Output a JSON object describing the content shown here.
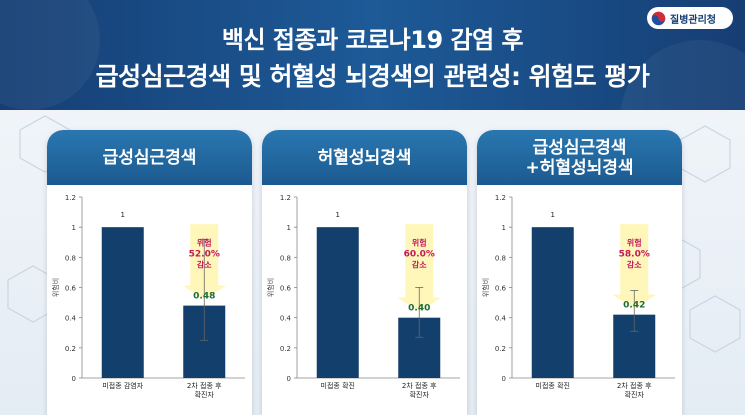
{
  "header": {
    "title_line1": "백신 접종과 코로나19 감염 후",
    "title_line2": "급성심근경색 및 허혈성 뇌경색의 관련성: 위험도 평가",
    "logo_text": "질병관리청"
  },
  "colors": {
    "header_bg": "#1b4f88",
    "card_head": "#1f65a0",
    "bar": "#123f6b",
    "risk_text": "#c2185b",
    "value_text": "#1f6b3a",
    "arrow_fill": "#fff6b3"
  },
  "chart_data": [
    {
      "type": "bar",
      "title_lines": [
        "급성심근경색"
      ],
      "ylabel": "위험비",
      "ylim": [
        0,
        1.2
      ],
      "yticks": [
        "0",
        "0.2",
        "0.4",
        "0.6",
        "0.8",
        "1",
        "1.2"
      ],
      "categories": [
        [
          "미접종 감염자"
        ],
        [
          "2차 접종 후",
          "확진자"
        ]
      ],
      "values": [
        1,
        0.48
      ],
      "value_labels": [
        "1",
        "0.48"
      ],
      "error_bars": [
        null,
        [
          0.25,
          0.92
        ]
      ],
      "annotation": {
        "line1": "위험",
        "line2": "52.0%",
        "line3": "감소"
      }
    },
    {
      "type": "bar",
      "title_lines": [
        "허혈성뇌경색"
      ],
      "ylabel": "위험비",
      "ylim": [
        0,
        1.2
      ],
      "yticks": [
        "0",
        "0.2",
        "0.4",
        "0.6",
        "0.8",
        "1",
        "1.2"
      ],
      "categories": [
        [
          "미접종 확진"
        ],
        [
          "2차 접종 후",
          "확진자"
        ]
      ],
      "values": [
        1,
        0.4
      ],
      "value_labels": [
        "1",
        "0.40"
      ],
      "error_bars": [
        null,
        [
          0.27,
          0.6
        ]
      ],
      "annotation": {
        "line1": "위험",
        "line2": "60.0%",
        "line3": "감소"
      }
    },
    {
      "type": "bar",
      "title_lines": [
        "급성심근경색",
        "+허혈성뇌경색"
      ],
      "ylabel": "위험비",
      "ylim": [
        0,
        1.2
      ],
      "yticks": [
        "0",
        "0.2",
        "0.4",
        "0.6",
        "0.8",
        "1",
        "1.2"
      ],
      "categories": [
        [
          "미접종 확진"
        ],
        [
          "2차 접종 후",
          "확진자"
        ]
      ],
      "values": [
        1,
        0.42
      ],
      "value_labels": [
        "1",
        "0.42"
      ],
      "error_bars": [
        null,
        [
          0.31,
          0.58
        ]
      ],
      "annotation": {
        "line1": "위험",
        "line2": "58.0%",
        "line3": "감소"
      }
    }
  ]
}
